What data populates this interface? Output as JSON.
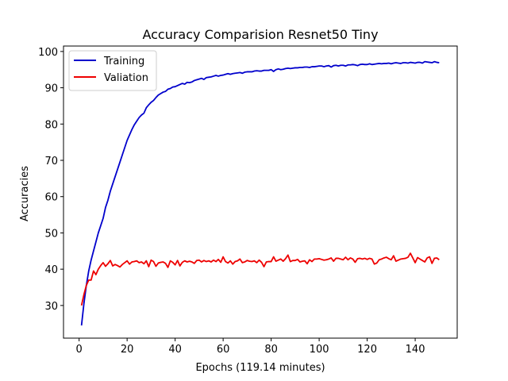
{
  "chart_data": {
    "type": "line",
    "title": "Accuracy Comparision Resnet50 Tiny",
    "xlabel": "Epochs (119.14 minutes)",
    "ylabel": "Accuracies",
    "xlim": [
      -6.5,
      157.5
    ],
    "ylim": [
      21,
      101.5
    ],
    "xticks": [
      0,
      20,
      40,
      60,
      80,
      100,
      120,
      140
    ],
    "yticks": [
      30,
      40,
      50,
      60,
      70,
      80,
      90,
      100
    ],
    "grid": false,
    "legend_position": "top-left",
    "colors": {
      "training": "#0000cc",
      "validation": "#ee0000"
    },
    "series": [
      {
        "name": "Training",
        "color": "#0000cc",
        "x": [
          1,
          2,
          3,
          4,
          5,
          6,
          7,
          8,
          9,
          10,
          11,
          12,
          13,
          14,
          15,
          16,
          17,
          18,
          19,
          20,
          21,
          22,
          23,
          24,
          25,
          26,
          27,
          28,
          29,
          30,
          31,
          32,
          33,
          34,
          35,
          36,
          37,
          38,
          39,
          40,
          41,
          42,
          43,
          44,
          45,
          46,
          47,
          48,
          49,
          50,
          51,
          52,
          53,
          54,
          55,
          56,
          57,
          58,
          59,
          60,
          61,
          62,
          63,
          64,
          65,
          66,
          67,
          68,
          69,
          70,
          71,
          72,
          73,
          74,
          75,
          76,
          77,
          78,
          79,
          80,
          81,
          82,
          83,
          84,
          85,
          86,
          87,
          88,
          89,
          90,
          91,
          92,
          93,
          94,
          95,
          96,
          97,
          98,
          99,
          100,
          101,
          102,
          103,
          104,
          105,
          106,
          107,
          108,
          109,
          110,
          111,
          112,
          113,
          114,
          115,
          116,
          117,
          118,
          119,
          120,
          121,
          122,
          123,
          124,
          125,
          126,
          127,
          128,
          129,
          130,
          131,
          132,
          133,
          134,
          135,
          136,
          137,
          138,
          139,
          140,
          141,
          142,
          143,
          144,
          145,
          146,
          147,
          148,
          149,
          150
        ],
        "values": [
          24.5,
          30.5,
          35.5,
          39.5,
          42.5,
          45.0,
          47.5,
          50.0,
          52.0,
          54.0,
          57.0,
          59.0,
          61.5,
          63.5,
          65.5,
          67.5,
          69.5,
          71.5,
          73.5,
          75.5,
          77.0,
          78.5,
          79.8,
          80.8,
          81.8,
          82.5,
          83.0,
          84.5,
          85.3,
          86.0,
          86.5,
          87.3,
          88.0,
          88.4,
          88.8,
          89.0,
          89.6,
          89.8,
          90.2,
          90.3,
          90.6,
          90.9,
          91.2,
          91.0,
          91.5,
          91.4,
          91.6,
          92.0,
          92.2,
          92.4,
          92.6,
          92.3,
          92.8,
          92.9,
          93.0,
          93.2,
          93.4,
          93.2,
          93.4,
          93.5,
          93.7,
          93.9,
          93.7,
          93.9,
          94.0,
          94.1,
          94.2,
          94.0,
          94.3,
          94.4,
          94.4,
          94.4,
          94.6,
          94.7,
          94.6,
          94.6,
          94.8,
          94.8,
          94.8,
          95.0,
          94.5,
          95.0,
          95.2,
          95.0,
          95.1,
          95.3,
          95.4,
          95.3,
          95.4,
          95.5,
          95.5,
          95.6,
          95.6,
          95.7,
          95.7,
          95.6,
          95.8,
          95.8,
          95.9,
          96.0,
          96.0,
          95.8,
          96.0,
          96.1,
          95.7,
          96.1,
          96.2,
          96.0,
          96.2,
          96.2,
          96.0,
          96.3,
          96.3,
          96.4,
          96.3,
          96.1,
          96.4,
          96.5,
          96.4,
          96.4,
          96.6,
          96.4,
          96.5,
          96.6,
          96.7,
          96.6,
          96.7,
          96.7,
          96.8,
          96.6,
          96.8,
          96.9,
          96.8,
          96.7,
          96.9,
          96.9,
          96.8,
          97.0,
          96.9,
          96.8,
          97.0,
          97.0,
          96.8,
          97.2,
          97.1,
          97.0,
          96.9,
          97.2,
          97.0,
          96.9
        ]
      },
      {
        "name": "Valiation",
        "color": "#ee0000",
        "x": [
          1,
          2,
          3,
          4,
          5,
          6,
          7,
          8,
          9,
          10,
          11,
          12,
          13,
          14,
          15,
          16,
          17,
          18,
          19,
          20,
          21,
          22,
          23,
          24,
          25,
          26,
          27,
          28,
          29,
          30,
          31,
          32,
          33,
          34,
          35,
          36,
          37,
          38,
          39,
          40,
          41,
          42,
          43,
          44,
          45,
          46,
          47,
          48,
          49,
          50,
          51,
          52,
          53,
          54,
          55,
          56,
          57,
          58,
          59,
          60,
          61,
          62,
          63,
          64,
          65,
          66,
          67,
          68,
          69,
          70,
          71,
          72,
          73,
          74,
          75,
          76,
          77,
          78,
          79,
          80,
          81,
          82,
          83,
          84,
          85,
          86,
          87,
          88,
          89,
          90,
          91,
          92,
          93,
          94,
          95,
          96,
          97,
          98,
          99,
          100,
          101,
          102,
          103,
          104,
          105,
          106,
          107,
          108,
          109,
          110,
          111,
          112,
          113,
          114,
          115,
          116,
          117,
          118,
          119,
          120,
          121,
          122,
          123,
          124,
          125,
          126,
          127,
          128,
          129,
          130,
          131,
          132,
          133,
          134,
          135,
          136,
          137,
          138,
          139,
          140,
          141,
          142,
          143,
          144,
          145,
          146,
          147,
          148,
          149,
          150
        ],
        "values": [
          30.0,
          33.0,
          35.5,
          37.0,
          37.0,
          39.5,
          38.5,
          40.0,
          41.0,
          41.8,
          40.8,
          41.5,
          42.4,
          40.9,
          41.3,
          41.0,
          40.6,
          41.3,
          41.8,
          42.3,
          41.4,
          42.0,
          42.1,
          42.3,
          41.8,
          42.0,
          41.5,
          42.3,
          40.7,
          42.5,
          42.1,
          40.8,
          41.7,
          41.9,
          42.0,
          41.6,
          40.5,
          42.3,
          41.9,
          41.2,
          42.4,
          40.9,
          41.9,
          42.3,
          42.0,
          42.2,
          42.0,
          41.6,
          42.4,
          42.5,
          42.0,
          42.4,
          42.1,
          42.3,
          42.0,
          42.5,
          42.1,
          42.7,
          41.9,
          43.4,
          42.1,
          41.7,
          42.3,
          41.4,
          42.1,
          42.3,
          42.8,
          41.8,
          42.0,
          42.4,
          42.2,
          42.1,
          42.3,
          41.8,
          42.5,
          41.9,
          40.7,
          42.0,
          42.1,
          42.1,
          43.4,
          42.2,
          42.5,
          42.8,
          42.2,
          42.9,
          43.9,
          42.1,
          42.4,
          42.4,
          42.7,
          42.0,
          42.2,
          42.3,
          41.5,
          42.6,
          42.1,
          42.8,
          42.8,
          42.9,
          42.7,
          42.5,
          42.6,
          42.8,
          43.1,
          42.2,
          43.0,
          43.0,
          42.8,
          42.6,
          43.3,
          42.6,
          43.1,
          42.8,
          41.9,
          42.9,
          43.0,
          42.8,
          43.0,
          42.7,
          43.0,
          42.8,
          41.4,
          41.7,
          42.6,
          42.8,
          43.1,
          43.3,
          42.9,
          42.6,
          43.7,
          42.2,
          42.5,
          42.8,
          42.9,
          43.0,
          43.3,
          44.4,
          43.1,
          41.8,
          43.2,
          42.8,
          42.4,
          42.0,
          43.1,
          43.4,
          41.6,
          43.0,
          43.1,
          42.6
        ]
      }
    ]
  }
}
